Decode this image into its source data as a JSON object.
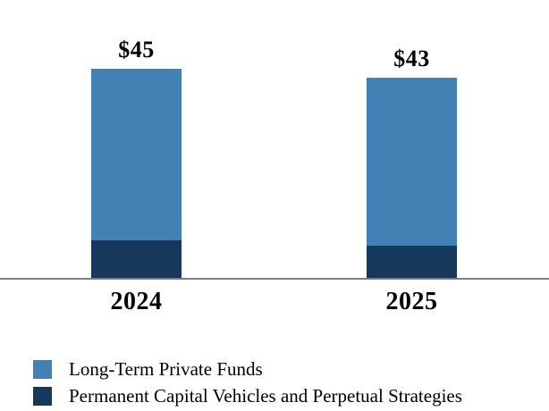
{
  "chart_data": {
    "type": "bar",
    "stacked": true,
    "title": "",
    "xlabel": "",
    "ylabel": "",
    "categories": [
      "2024",
      "2025"
    ],
    "series": [
      {
        "name": "Long-Term Private Funds",
        "color": "#4381B5",
        "values": [
          37,
          36
        ]
      },
      {
        "name": "Permanent Capital Vehicles and Perpetual Strategies",
        "color": "#16395B",
        "values": [
          8,
          7
        ]
      }
    ],
    "totals": [
      45,
      43
    ],
    "total_labels": [
      "$45",
      "$43"
    ],
    "grid": false,
    "legend_position": "bottom-left",
    "axis_color": "#7D7D7D",
    "background_color": "#FFFFFF",
    "text_color": "#000000"
  }
}
